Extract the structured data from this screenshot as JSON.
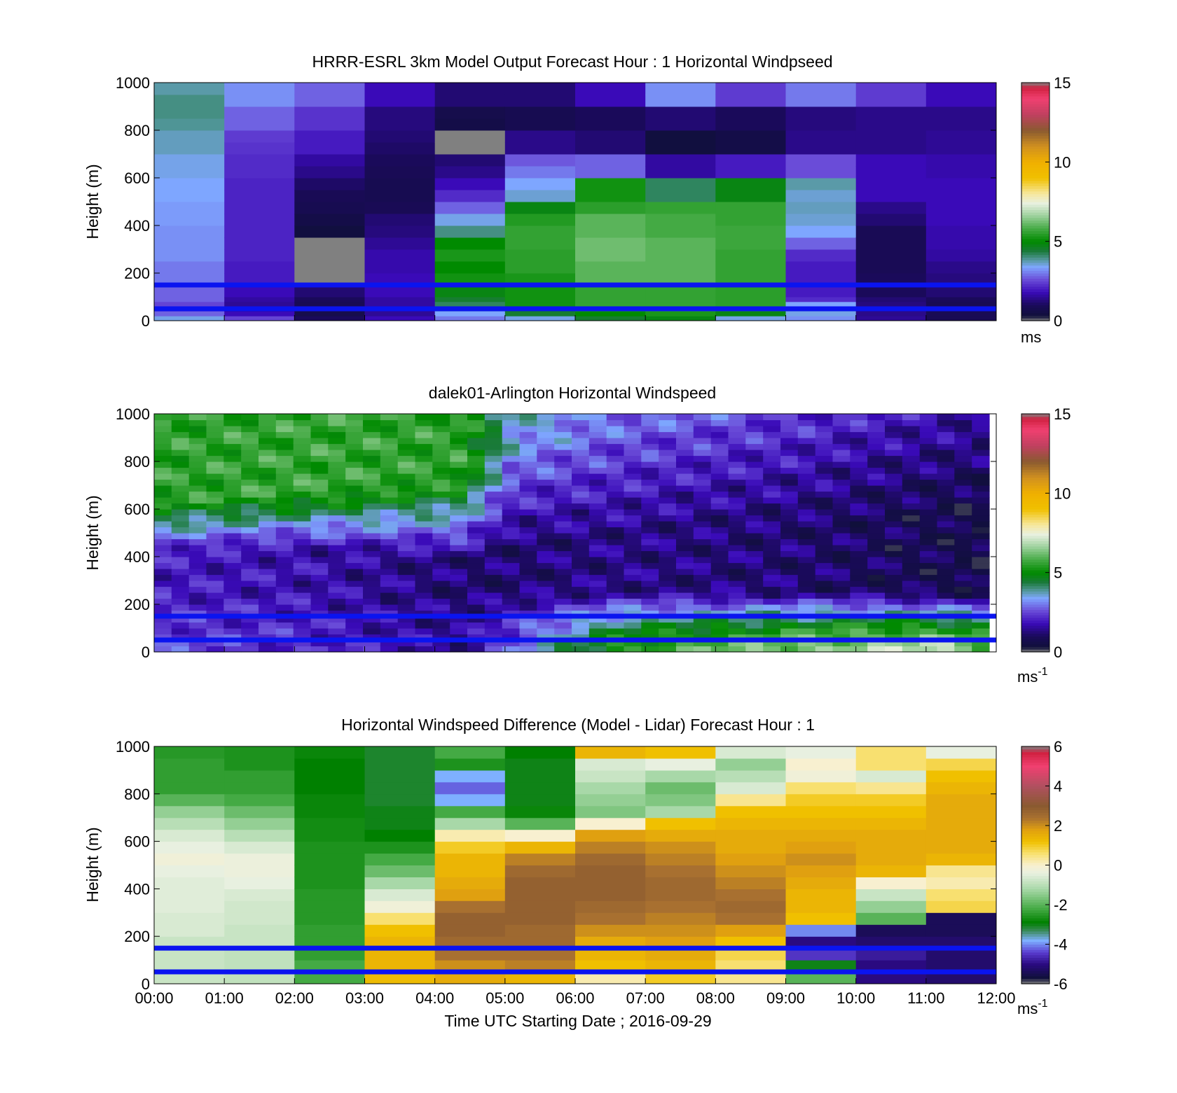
{
  "chart_data": [
    {
      "type": "heatmap",
      "title": "HRRR-ESRL 3km Model Output   Forecast Hour : 1 Horizontal Windpseed",
      "ylabel": "Height (m)",
      "xlabel": "",
      "ylim": [
        0,
        1000
      ],
      "xlim": [
        0,
        12
      ],
      "yticks": [
        "0",
        "200",
        "400",
        "600",
        "800",
        "1000"
      ],
      "xtick_positions": [
        0,
        1,
        2,
        3,
        4,
        5,
        6,
        7,
        8,
        9,
        10,
        11,
        12
      ],
      "colorbar": {
        "min": 0,
        "max": 15,
        "ticks": [
          "0",
          "5",
          "10",
          "15"
        ],
        "unit": "ms"
      },
      "reference_lines_height_m": [
        150,
        50
      ],
      "height_levels_m": [
        0,
        20,
        40,
        60,
        80,
        100,
        150,
        200,
        250,
        300,
        350,
        400,
        450,
        500,
        550,
        600,
        650,
        700,
        750,
        800,
        850,
        900,
        950,
        1000
      ],
      "columns": [
        {
          "hour": 0,
          "values": [
            3.5,
            2.8,
            2.5,
            2.5,
            2.8,
            2.8,
            3.0,
            3.0,
            3.2,
            3.2,
            3.2,
            3.3,
            3.3,
            3.4,
            3.4,
            3.5,
            3.5,
            3.7,
            3.7,
            3.9,
            4.0,
            4.0,
            3.8
          ]
        },
        {
          "hour": 1,
          "values": [
            2.5,
            1.8,
            1.5,
            1.5,
            1.6,
            1.8,
            2.0,
            2.0,
            2.1,
            2.1,
            2.1,
            2.1,
            2.1,
            2.1,
            2.1,
            2.2,
            2.2,
            2.3,
            2.4,
            2.8,
            2.8,
            3.2,
            3.2
          ]
        },
        {
          "hour": 2,
          "values": [
            1.0,
            0.7,
            0.8,
            0.9,
            1.0,
            1.2,
            0.0,
            0.0,
            0.0,
            0.0,
            0.4,
            0.6,
            0.8,
            0.9,
            1.1,
            1.4,
            1.6,
            2.0,
            2.0,
            2.3,
            2.3,
            2.8,
            2.8
          ]
        },
        {
          "hour": 3,
          "values": [
            1.8,
            1.5,
            1.5,
            1.6,
            1.6,
            1.8,
            1.8,
            1.7,
            1.7,
            1.5,
            1.3,
            1.2,
            0.9,
            0.8,
            0.8,
            0.9,
            1.0,
            1.1,
            1.2,
            1.3,
            1.3,
            1.8,
            1.8
          ]
        },
        {
          "hour": 4,
          "values": [
            3.0,
            3.4,
            3.6,
            4.2,
            4.5,
            4.8,
            5.2,
            5.0,
            5.3,
            5.0,
            4.0,
            3.5,
            2.8,
            2.2,
            1.8,
            1.4,
            1.2,
            0.0,
            0.0,
            0.6,
            0.7,
            1.2,
            1.2
          ]
        },
        {
          "hour": 5,
          "values": [
            3.5,
            4.5,
            5.2,
            5.2,
            5.2,
            5.2,
            5.3,
            5.5,
            5.5,
            5.6,
            5.6,
            5.4,
            4.8,
            3.6,
            3.4,
            3.0,
            2.7,
            1.4,
            1.4,
            0.8,
            0.8,
            1.2,
            1.2
          ]
        },
        {
          "hour": 6,
          "values": [
            4.5,
            5.0,
            5.5,
            5.6,
            5.6,
            5.6,
            6.0,
            6.0,
            6.2,
            6.2,
            6.0,
            6.0,
            5.5,
            5.2,
            5.2,
            2.8,
            2.8,
            1.2,
            1.2,
            1.0,
            1.0,
            1.8,
            1.8
          ]
        },
        {
          "hour": 7,
          "values": [
            4.8,
            5.3,
            5.6,
            5.6,
            5.6,
            5.6,
            6.0,
            6.0,
            6.0,
            6.0,
            5.8,
            5.8,
            5.6,
            4.2,
            4.2,
            1.6,
            1.6,
            0.4,
            0.4,
            1.2,
            1.2,
            3.2,
            3.2
          ]
        },
        {
          "hour": 8,
          "values": [
            3.5,
            4.8,
            5.4,
            5.5,
            5.5,
            5.5,
            5.6,
            5.6,
            5.6,
            5.7,
            5.7,
            5.6,
            5.6,
            4.8,
            4.8,
            2.0,
            2.0,
            0.6,
            0.6,
            1.0,
            1.0,
            2.4,
            2.4
          ]
        },
        {
          "hour": 9,
          "values": [
            3.2,
            3.5,
            3.6,
            3.4,
            2.2,
            2.0,
            2.0,
            2.0,
            2.2,
            2.8,
            3.4,
            3.6,
            3.7,
            3.6,
            3.8,
            2.6,
            2.6,
            1.4,
            1.4,
            1.3,
            1.3,
            3.0,
            3.0
          ]
        },
        {
          "hour": 10,
          "values": [
            1.5,
            1.4,
            1.3,
            1.3,
            1.2,
            1.0,
            1.0,
            0.9,
            0.9,
            0.9,
            0.9,
            1.2,
            1.4,
            1.8,
            1.8,
            1.8,
            1.8,
            1.4,
            1.4,
            1.4,
            1.4,
            2.4,
            2.4
          ]
        },
        {
          "hour": 11,
          "values": [
            0.9,
            0.9,
            0.9,
            0.9,
            1.0,
            1.2,
            1.3,
            1.4,
            1.6,
            1.7,
            1.7,
            1.8,
            1.8,
            1.8,
            1.8,
            1.7,
            1.7,
            1.5,
            1.5,
            1.4,
            1.4,
            1.8,
            1.8
          ]
        }
      ]
    },
    {
      "type": "heatmap",
      "title": "dalek01-Arlington  Horizontal Windspeed",
      "ylabel": "Height (m)",
      "xlabel": "",
      "ylim": [
        0,
        1000
      ],
      "xlim": [
        0,
        12
      ],
      "yticks": [
        "0",
        "200",
        "400",
        "600",
        "800",
        "1000"
      ],
      "colorbar": {
        "min": 0,
        "max": 15,
        "ticks": [
          "0",
          "5",
          "10",
          "15"
        ],
        "unit": "ms",
        "unit_exp": "-1"
      },
      "reference_lines_height_m": [
        150,
        50
      ],
      "profile_anchors": [
        {
          "hour": 0,
          "jet_top": 640,
          "jet_mid": 420,
          "low_val": 2.5,
          "mid_val": 2.0,
          "top_val": 5.5
        },
        {
          "hour": 2,
          "jet_top": 660,
          "jet_mid": 450,
          "low_val": 2.2,
          "mid_val": 1.8,
          "top_val": 5.6
        },
        {
          "hour": 4.3,
          "jet_top": 720,
          "jet_mid": 380,
          "low_val": 1.5,
          "mid_val": 1.2,
          "top_val": 5.5
        },
        {
          "hour": 5.0,
          "jet_top": 900,
          "jet_mid": 450,
          "low_val": 2.8,
          "mid_val": 1.2,
          "top_val": 3.5
        },
        {
          "hour": 6.5,
          "jet_top": 1000,
          "jet_mid": 500,
          "low_val": 5.5,
          "mid_val": 1.4,
          "top_val": 3.0
        },
        {
          "hour": 9.0,
          "jet_top": 1000,
          "jet_mid": 550,
          "low_val": 6.5,
          "mid_val": 1.2,
          "top_val": 2.4
        },
        {
          "hour": 11.0,
          "jet_top": 1000,
          "jet_mid": 600,
          "low_val": 7.0,
          "mid_val": 0.8,
          "top_val": 1.8
        },
        {
          "hour": 11.9,
          "jet_top": 1000,
          "jet_mid": 600,
          "low_val": 6.0,
          "mid_val": 0.6,
          "top_val": 1.6
        }
      ]
    },
    {
      "type": "heatmap",
      "title": "Horizontal Windspeed Difference (Model - Lidar) Forecast Hour : 1",
      "ylabel": "Height (m)",
      "xlabel": "Time UTC  Starting Date ; 2016-09-29",
      "ylim": [
        0,
        1000
      ],
      "xlim": [
        0,
        12
      ],
      "yticks": [
        "0",
        "200",
        "400",
        "600",
        "800",
        "1000"
      ],
      "xticks": [
        "00:00",
        "01:00",
        "02:00",
        "03:00",
        "04:00",
        "05:00",
        "06:00",
        "07:00",
        "08:00",
        "09:00",
        "10:00",
        "11:00",
        "12:00"
      ],
      "colorbar": {
        "min": -6,
        "max": 6,
        "ticks": [
          "-6",
          "-4",
          "-2",
          "0",
          "2",
          "4",
          "6"
        ],
        "unit": "ms",
        "unit_exp": "-1"
      },
      "reference_lines_height_m": [
        150,
        50
      ],
      "height_levels_m": [
        0,
        50,
        100,
        150,
        200,
        250,
        300,
        350,
        400,
        450,
        500,
        550,
        600,
        650,
        700,
        750,
        800,
        850,
        900,
        950,
        1000
      ],
      "columns": [
        {
          "hour": 0,
          "values": [
            -0.8,
            -0.8,
            -0.8,
            -0.8,
            -0.6,
            -0.6,
            -0.5,
            -0.5,
            -0.5,
            -0.4,
            -0.2,
            -0.4,
            -0.6,
            -1.0,
            -1.4,
            -2.0,
            -2.4,
            -2.4,
            -2.4,
            -2.5
          ]
        },
        {
          "hour": 1,
          "values": [
            -0.9,
            -0.9,
            -0.9,
            -0.8,
            -0.8,
            -0.7,
            -0.7,
            -0.6,
            -0.4,
            -0.3,
            -0.3,
            -0.6,
            -1.0,
            -1.4,
            -1.8,
            -2.2,
            -2.4,
            -2.4,
            -2.6,
            -2.6
          ]
        },
        {
          "hour": 2,
          "values": [
            -2.2,
            -2.2,
            -2.4,
            -2.4,
            -2.4,
            -2.5,
            -2.5,
            -2.5,
            -2.6,
            -2.6,
            -2.6,
            -2.6,
            -2.7,
            -2.7,
            -2.8,
            -2.8,
            -2.9,
            -2.9,
            -2.9,
            -2.8
          ]
        },
        {
          "hour": 3,
          "values": [
            1.3,
            1.4,
            1.4,
            1.4,
            1.2,
            0.6,
            -0.2,
            -0.6,
            -1.2,
            -1.8,
            -2.2,
            -2.6,
            -2.9,
            -3.0,
            -3.0,
            -3.1,
            -3.1,
            -3.1,
            -3.1,
            -3.1
          ]
        },
        {
          "hour": 4,
          "values": [
            1.6,
            2.0,
            2.4,
            2.6,
            2.8,
            2.8,
            2.4,
            1.8,
            1.6,
            1.4,
            1.4,
            1.0,
            0.2,
            -1.2,
            -2.2,
            -3.8,
            -4.2,
            -3.8,
            -2.6,
            -2.2
          ]
        },
        {
          "hour": 5,
          "values": [
            1.4,
            2.2,
            2.4,
            2.6,
            2.6,
            2.8,
            2.8,
            2.8,
            2.8,
            2.6,
            2.2,
            1.4,
            0.0,
            -2.0,
            -2.8,
            -3.0,
            -3.0,
            -3.0,
            -3.0,
            -2.9
          ]
        },
        {
          "hour": 6,
          "values": [
            0.2,
            1.2,
            1.4,
            1.6,
            2.0,
            2.4,
            2.6,
            2.8,
            2.8,
            2.8,
            2.6,
            2.2,
            1.8,
            0.0,
            -1.6,
            -1.4,
            -1.2,
            -0.8,
            -0.6,
            1.4
          ]
        },
        {
          "hour": 7,
          "values": [
            1.0,
            1.4,
            1.6,
            1.8,
            2.0,
            2.2,
            2.4,
            2.6,
            2.6,
            2.4,
            2.2,
            2.0,
            1.6,
            1.2,
            -1.2,
            -1.6,
            -1.8,
            -1.2,
            -0.4,
            1.2
          ]
        },
        {
          "hour": 8,
          "values": [
            0.4,
            0.6,
            0.8,
            1.2,
            1.8,
            2.4,
            2.6,
            2.4,
            2.2,
            2.0,
            1.8,
            1.6,
            1.6,
            1.4,
            1.2,
            0.4,
            -0.6,
            -1.0,
            -1.4,
            -0.6
          ]
        },
        {
          "hour": 9,
          "values": [
            -2.0,
            -3.0,
            -4.5,
            -5.0,
            -4.0,
            1.2,
            1.4,
            1.4,
            1.6,
            1.8,
            2.0,
            1.8,
            1.6,
            1.4,
            1.2,
            1.0,
            0.6,
            -0.2,
            0.0,
            -0.4
          ]
        },
        {
          "hour": 10,
          "values": [
            -5.0,
            -5.0,
            -4.8,
            -5.2,
            -5.4,
            -2.0,
            -1.4,
            -0.8,
            0.0,
            1.4,
            1.6,
            1.6,
            1.6,
            1.4,
            1.2,
            1.0,
            0.4,
            -0.6,
            0.6,
            0.6
          ]
        },
        {
          "hour": 11,
          "values": [
            -5.2,
            -5.2,
            -5.2,
            -5.2,
            -5.4,
            -5.4,
            0.8,
            0.6,
            0.2,
            0.4,
            1.4,
            1.6,
            1.6,
            1.6,
            1.6,
            1.6,
            1.4,
            1.2,
            0.8,
            -0.4
          ]
        }
      ]
    }
  ]
}
